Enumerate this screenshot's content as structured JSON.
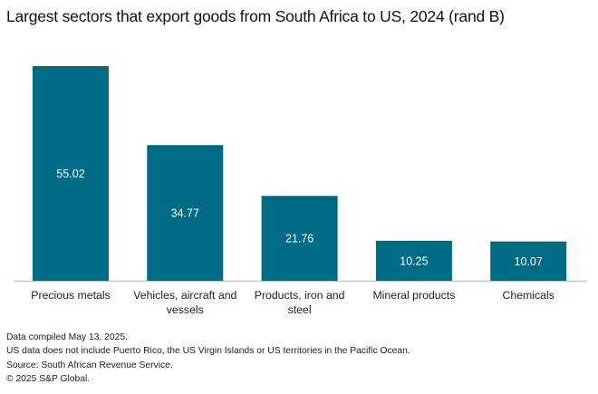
{
  "chart_data": {
    "type": "bar",
    "title": "Largest sectors that export goods from South Africa to US, 2024 (rand B)",
    "xlabel": "",
    "ylabel": "",
    "categories": [
      "Precious metals",
      "Vehicles, aircraft and vessels",
      "Products, iron and steel",
      "Mineral products",
      "Chemicals"
    ],
    "category_lines": [
      [
        "Precious metals"
      ],
      [
        "Vehicles, aircraft and",
        "vessels"
      ],
      [
        "Products, iron and",
        "steel"
      ],
      [
        "Mineral products"
      ],
      [
        "Chemicals"
      ]
    ],
    "values": [
      55.02,
      34.77,
      21.76,
      10.25,
      10.07
    ],
    "value_labels": [
      "55.02",
      "34.77",
      "21.76",
      "10.25",
      "10.07"
    ],
    "ylim": [
      0,
      55.02
    ],
    "grid": false,
    "legend": "none",
    "colors": {
      "bar": "#006b85",
      "axis": "#c8c8c8",
      "label_inside": "#ffffff"
    }
  },
  "footnotes": [
    "Data compiled May 13, 2025.",
    "US data does not include Puerto Rico, the US Virgin Islands or US territories in the Pacific Ocean.",
    "Source: South African Revenue Service.",
    "© 2025 S&P Global."
  ]
}
